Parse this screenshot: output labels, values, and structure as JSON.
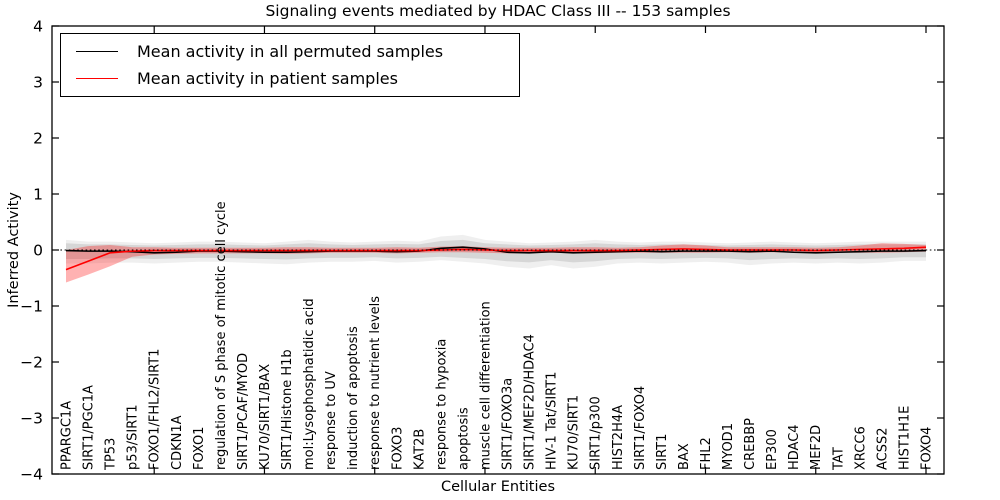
{
  "figure": {
    "title": "Signaling events mediated by HDAC Class III -- 153 samples",
    "xlabel": "Cellular Entities",
    "ylabel": "Inferred Activity"
  },
  "legend": {
    "items": [
      {
        "label": "Mean activity in all permuted samples",
        "color": "#000000"
      },
      {
        "label": "Mean activity in patient samples",
        "color": "#ff0000"
      }
    ]
  },
  "chart_data": {
    "type": "line",
    "title": "Signaling events mediated by HDAC Class III -- 153 samples",
    "xlabel": "Cellular Entities",
    "ylabel": "Inferred Activity",
    "ylim": [
      -4,
      4
    ],
    "yticklabels": [
      "4",
      "3",
      "2",
      "1",
      "0",
      "−1",
      "−2",
      "−3",
      "−4"
    ],
    "yticks": [
      4,
      3,
      2,
      1,
      0,
      -1,
      -2,
      -3,
      -4
    ],
    "xtick_indices": [
      4,
      9,
      14,
      19,
      24,
      29,
      34,
      39
    ],
    "grid": false,
    "legend_position": "upper left",
    "zero_line": {
      "y": 0,
      "style": "dotted",
      "color": "#000000"
    },
    "categories": [
      "PPARGC1A",
      "SIRT1/PGC1A",
      "TP53",
      "p53/SIRT1",
      "FOXO1/FHL2/SIRT1",
      "CDKN1A",
      "FOXO1",
      "regulation of S phase of mitotic cell cycle",
      "SIRT1/PCAF/MYOD",
      "KU70/SIRT1/BAX",
      "SIRT1/Histone H1b",
      "mol:Lysophosphatidic acid",
      "response to UV",
      "induction of apoptosis",
      "response to nutrient levels",
      "FOXO3",
      "KAT2B",
      "response to hypoxia",
      "apoptosis",
      "muscle cell differentiation",
      "SIRT1/FOXO3a",
      "SIRT1/MEF2D/HDAC4",
      "HIV-1 Tat/SIRT1",
      "KU70/SIRT1",
      "SIRT1/p300",
      "HIST2H4A",
      "SIRT1/FOXO4",
      "SIRT1",
      "BAX",
      "FHL2",
      "MYOD1",
      "CREBBP",
      "EP300",
      "HDAC4",
      "MEF2D",
      "TAT",
      "XRCC6",
      "ACSS2",
      "HIST1H1E",
      "FOXO4"
    ],
    "series": [
      {
        "name": "Mean activity in all permuted samples",
        "color": "#000000",
        "band_color": "#808080",
        "values": [
          -0.01,
          -0.02,
          -0.02,
          -0.03,
          -0.05,
          -0.04,
          -0.02,
          -0.02,
          -0.03,
          -0.04,
          -0.04,
          -0.03,
          -0.02,
          -0.02,
          -0.02,
          -0.03,
          -0.02,
          0.03,
          0.05,
          0.02,
          -0.04,
          -0.05,
          -0.03,
          -0.05,
          -0.04,
          -0.03,
          -0.02,
          -0.03,
          -0.02,
          -0.02,
          -0.02,
          -0.03,
          -0.02,
          -0.04,
          -0.05,
          -0.04,
          -0.03,
          -0.02,
          -0.02,
          -0.01
        ],
        "band_low": [
          -0.16,
          -0.16,
          -0.15,
          -0.15,
          -0.16,
          -0.15,
          -0.14,
          -0.14,
          -0.15,
          -0.16,
          -0.17,
          -0.15,
          -0.14,
          -0.14,
          -0.13,
          -0.15,
          -0.14,
          -0.12,
          -0.14,
          -0.16,
          -0.2,
          -0.22,
          -0.18,
          -0.22,
          -0.2,
          -0.16,
          -0.15,
          -0.16,
          -0.15,
          -0.14,
          -0.15,
          -0.18,
          -0.16,
          -0.15,
          -0.16,
          -0.15,
          -0.16,
          -0.15,
          -0.13,
          -0.13
        ],
        "band_high": [
          0.12,
          0.1,
          0.1,
          0.09,
          0.08,
          0.09,
          0.1,
          0.1,
          0.09,
          0.08,
          0.1,
          0.12,
          0.1,
          0.09,
          0.1,
          0.11,
          0.1,
          0.16,
          0.18,
          0.12,
          0.1,
          0.08,
          0.09,
          0.1,
          0.12,
          0.1,
          0.09,
          0.1,
          0.1,
          0.09,
          0.08,
          0.09,
          0.1,
          0.09,
          0.08,
          0.09,
          0.1,
          0.1,
          0.1,
          0.1
        ]
      },
      {
        "name": "Mean activity in patient samples",
        "color": "#ff0000",
        "band_color": "#ff0000",
        "values": [
          -0.35,
          -0.2,
          -0.05,
          -0.02,
          -0.01,
          -0.01,
          -0.01,
          -0.01,
          -0.01,
          -0.01,
          -0.01,
          -0.01,
          -0.01,
          -0.01,
          -0.01,
          -0.01,
          -0.01,
          0.0,
          0.01,
          0.0,
          -0.01,
          -0.01,
          -0.01,
          -0.01,
          -0.01,
          -0.01,
          0.0,
          0.01,
          0.02,
          0.01,
          0.0,
          0.0,
          0.0,
          0.0,
          -0.01,
          0.0,
          0.01,
          0.02,
          0.03,
          0.05
        ],
        "band_low": [
          -0.58,
          -0.44,
          -0.29,
          -0.12,
          -0.08,
          -0.07,
          -0.06,
          -0.06,
          -0.06,
          -0.06,
          -0.07,
          -0.06,
          -0.05,
          -0.05,
          -0.05,
          -0.06,
          -0.05,
          -0.04,
          -0.04,
          -0.05,
          -0.06,
          -0.06,
          -0.05,
          -0.06,
          -0.06,
          -0.05,
          -0.05,
          -0.05,
          -0.05,
          -0.05,
          -0.04,
          -0.05,
          -0.04,
          -0.05,
          -0.05,
          -0.04,
          -0.05,
          -0.05,
          -0.04,
          -0.03
        ],
        "band_high": [
          0.0,
          0.07,
          0.09,
          0.05,
          0.05,
          0.04,
          0.04,
          0.04,
          0.04,
          0.04,
          0.05,
          0.05,
          0.04,
          0.04,
          0.04,
          0.05,
          0.04,
          0.06,
          0.07,
          0.05,
          0.04,
          0.04,
          0.04,
          0.05,
          0.05,
          0.04,
          0.05,
          0.08,
          0.1,
          0.08,
          0.05,
          0.05,
          0.05,
          0.05,
          0.04,
          0.05,
          0.08,
          0.12,
          0.11,
          0.09
        ]
      }
    ]
  }
}
